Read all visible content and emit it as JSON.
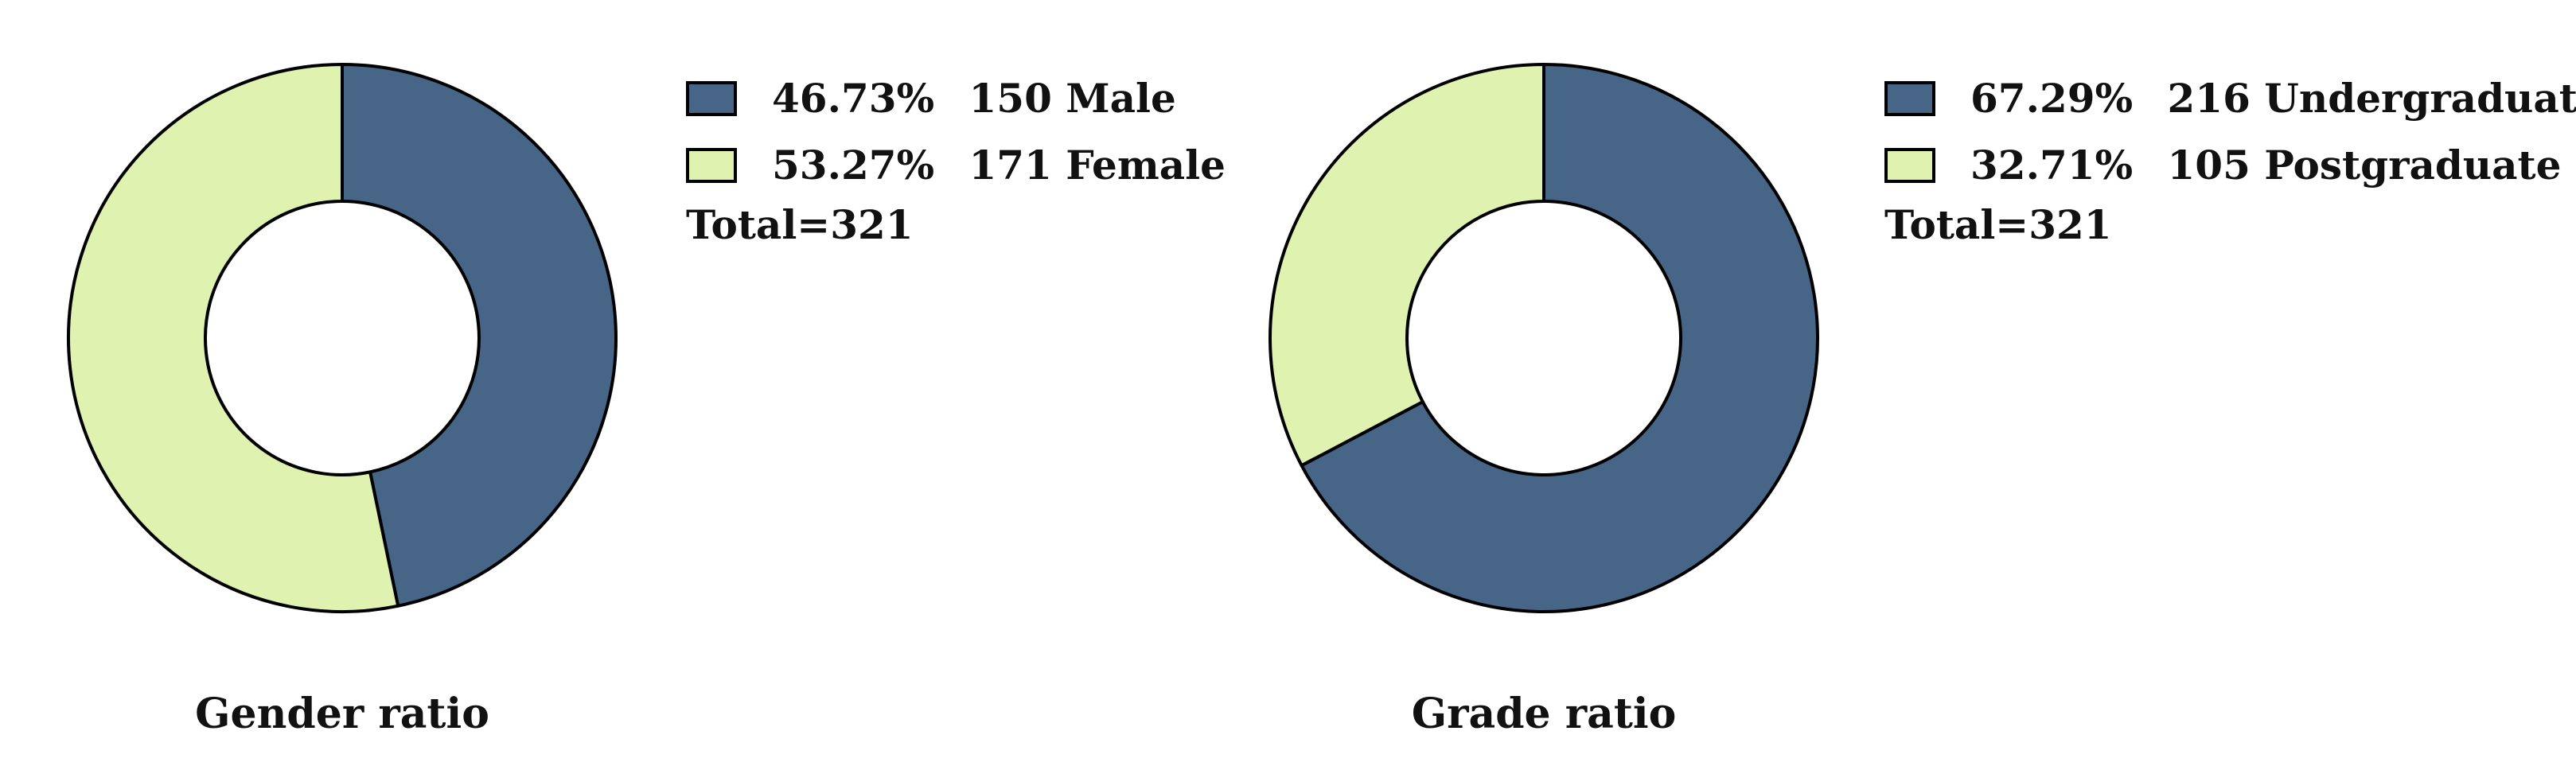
{
  "chart_data": [
    {
      "type": "pie",
      "title": "Gender ratio",
      "total_label": "Total=321",
      "donut": true,
      "start_angle_deg": 0,
      "direction": "clockwise",
      "slices": [
        {
          "label": "Male",
          "count": 150,
          "percent": "46.73%",
          "value": 46.73,
          "color": "#466587"
        },
        {
          "label": "Female",
          "count": 171,
          "percent": "53.27%",
          "value": 53.27,
          "color": "#dff2b0"
        }
      ]
    },
    {
      "type": "pie",
      "title": "Grade ratio",
      "total_label": "Total=321",
      "donut": true,
      "start_angle_deg": 0,
      "direction": "clockwise",
      "slices": [
        {
          "label": "Undergraduate",
          "count": 216,
          "percent": "67.29%",
          "value": 67.29,
          "color": "#466587"
        },
        {
          "label": "Postgraduate",
          "count": 105,
          "percent": "32.71%",
          "value": 32.71,
          "color": "#dff2b0"
        }
      ]
    }
  ]
}
